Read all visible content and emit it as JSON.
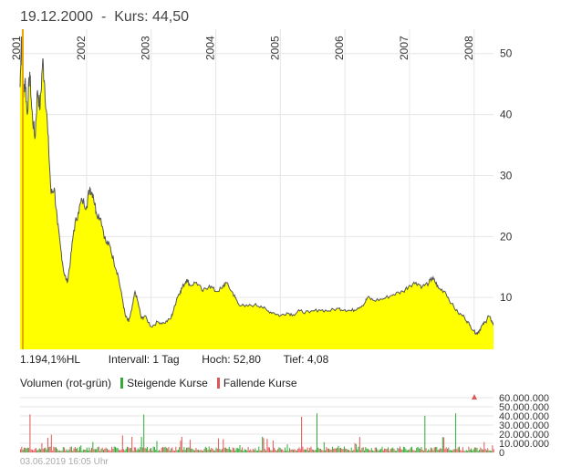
{
  "header": {
    "date": "19.12.2000",
    "separator": "-",
    "price_label": "Kurs: 44,50"
  },
  "stats": {
    "performance": "1.194,1%HL",
    "interval": "Intervall: 1 Tag",
    "high": "Hoch:  52,80",
    "low": "Tief:  4,08"
  },
  "volume_legend": {
    "title": "Volumen (rot-grün)",
    "rising": "Steigende Kurse",
    "falling": "Fallende Kurse"
  },
  "timestamp": "03.06.2019 16:05 Uhr",
  "colors": {
    "fill": "#ffff00",
    "line": "#555555",
    "rising": "#33aa33",
    "falling": "#e05555",
    "grid": "#e6e6e6"
  },
  "chart_data": [
    {
      "type": "area",
      "title": "19.12.2000 - Kurs: 44,50",
      "xlabel": "",
      "ylabel": "",
      "x_ticks": [
        "2001",
        "2002",
        "2003",
        "2004",
        "2005",
        "2006",
        "2007",
        "2008"
      ],
      "y_ticks": [
        10,
        20,
        30,
        40,
        50
      ],
      "xlim": [
        2000.97,
        2008.3
      ],
      "ylim": [
        1.5,
        54
      ],
      "grid": true,
      "series": [
        {
          "name": "Kurs",
          "points": [
            [
              2000.97,
              44.5
            ],
            [
              2000.99,
              52.8
            ],
            [
              2001.02,
              43
            ],
            [
              2001.05,
              46
            ],
            [
              2001.08,
              40
            ],
            [
              2001.12,
              47
            ],
            [
              2001.15,
              41
            ],
            [
              2001.2,
              36
            ],
            [
              2001.24,
              44
            ],
            [
              2001.28,
              41
            ],
            [
              2001.32,
              49
            ],
            [
              2001.35,
              45
            ],
            [
              2001.4,
              37
            ],
            [
              2001.45,
              27
            ],
            [
              2001.5,
              28
            ],
            [
              2001.55,
              22
            ],
            [
              2001.6,
              18
            ],
            [
              2001.65,
              14
            ],
            [
              2001.7,
              12.5
            ],
            [
              2001.75,
              16
            ],
            [
              2001.8,
              21
            ],
            [
              2001.87,
              24
            ],
            [
              2001.93,
              26
            ],
            [
              2002.0,
              25
            ],
            [
              2002.05,
              28
            ],
            [
              2002.1,
              27
            ],
            [
              2002.15,
              24
            ],
            [
              2002.22,
              23
            ],
            [
              2002.3,
              19
            ],
            [
              2002.36,
              18.5
            ],
            [
              2002.42,
              16
            ],
            [
              2002.48,
              14
            ],
            [
              2002.55,
              10
            ],
            [
              2002.6,
              7
            ],
            [
              2002.65,
              6
            ],
            [
              2002.7,
              8
            ],
            [
              2002.75,
              11
            ],
            [
              2002.8,
              9
            ],
            [
              2002.85,
              6.5
            ],
            [
              2002.9,
              7
            ],
            [
              2003.0,
              5.2
            ],
            [
              2003.1,
              6
            ],
            [
              2003.2,
              5.8
            ],
            [
              2003.3,
              6.5
            ],
            [
              2003.35,
              8
            ],
            [
              2003.4,
              10
            ],
            [
              2003.45,
              11
            ],
            [
              2003.5,
              12
            ],
            [
              2003.55,
              13
            ],
            [
              2003.6,
              12
            ],
            [
              2003.7,
              12.5
            ],
            [
              2003.8,
              11
            ],
            [
              2003.9,
              12
            ],
            [
              2004.0,
              11
            ],
            [
              2004.1,
              11.5
            ],
            [
              2004.15,
              12.5
            ],
            [
              2004.25,
              11
            ],
            [
              2004.3,
              10
            ],
            [
              2004.35,
              9
            ],
            [
              2004.45,
              8.5
            ],
            [
              2004.6,
              8.8
            ],
            [
              2004.7,
              8.6
            ],
            [
              2004.8,
              7.8
            ],
            [
              2004.9,
              7.5
            ],
            [
              2005.0,
              7
            ],
            [
              2005.1,
              7.5
            ],
            [
              2005.2,
              7.2
            ],
            [
              2005.3,
              7.8
            ],
            [
              2005.45,
              7.5
            ],
            [
              2005.6,
              8
            ],
            [
              2005.75,
              7.8
            ],
            [
              2005.9,
              8.2
            ],
            [
              2006.0,
              8
            ],
            [
              2006.1,
              7.8
            ],
            [
              2006.2,
              8.3
            ],
            [
              2006.3,
              9
            ],
            [
              2006.35,
              10
            ],
            [
              2006.45,
              9.5
            ],
            [
              2006.6,
              9.8
            ],
            [
              2006.75,
              10.5
            ],
            [
              2006.9,
              11
            ],
            [
              2007.0,
              12
            ],
            [
              2007.1,
              12.5
            ],
            [
              2007.2,
              11.8
            ],
            [
              2007.3,
              12.4
            ],
            [
              2007.35,
              13.2
            ],
            [
              2007.4,
              12.5
            ],
            [
              2007.45,
              11.5
            ],
            [
              2007.55,
              11
            ],
            [
              2007.65,
              9
            ],
            [
              2007.75,
              7.5
            ],
            [
              2007.85,
              6.8
            ],
            [
              2007.93,
              5.5
            ],
            [
              2008.0,
              4.5
            ],
            [
              2008.04,
              4.08
            ],
            [
              2008.08,
              4.6
            ],
            [
              2008.13,
              5.5
            ],
            [
              2008.18,
              6
            ],
            [
              2008.22,
              7
            ],
            [
              2008.27,
              6.2
            ],
            [
              2008.3,
              5.5
            ]
          ]
        }
      ]
    },
    {
      "type": "bar",
      "title": "Volumen (rot-grün)",
      "y_ticks": [
        0,
        10000000,
        20000000,
        30000000,
        40000000,
        50000000,
        60000000
      ],
      "y_tick_labels": [
        "0",
        "10.000.000",
        "20.000.000",
        "30.000.000",
        "40.000.000",
        "50.000.000",
        "60.000.000"
      ],
      "ylim": [
        0,
        60000000
      ],
      "note": "dense daily volume bars, mostly 2-10 million, occasional spikes up to ~55 million"
    }
  ]
}
